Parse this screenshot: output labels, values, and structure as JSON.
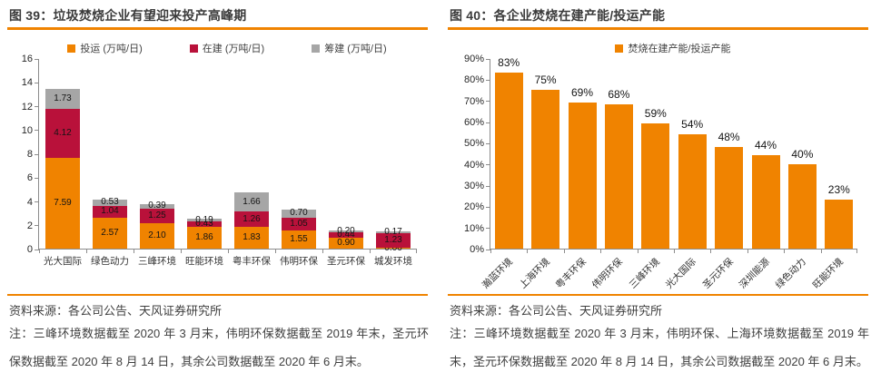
{
  "colors": {
    "accent_orange": "#F08300",
    "crimson": "#B9113A",
    "gray": "#A6A6A6",
    "axis": "#8C8C8C",
    "text": "#3F3F3F"
  },
  "panels": [
    {
      "title": "图 39：垃圾焚烧企业有望迎来投产高峰期",
      "source": "资料来源：各公司公告、天风证券研究所",
      "note": "注：三峰环境数据截至 2020 年 3 月末，伟明环保数据截至 2019 年末，圣元环保数据截至 2020 年 8 月 14 日，其余公司数据截至 2020 年 6 月末。"
    },
    {
      "title": "图 40：各企业焚烧在建产能/投运产能",
      "source": "资料来源：各公司公告、天风证券研究所",
      "note": "注：三峰环境数据截至 2020 年 3 月末，伟明环保、上海环境数据截至 2019 年末，圣元环保数据截至 2020 年 8 月 14 日，其余公司数据截至 2020 年 6 月末。"
    }
  ],
  "chart_data": [
    {
      "type": "bar",
      "stacked": true,
      "title": "垃圾焚烧企业有望迎来投产高峰期",
      "categories": [
        "光大国际",
        "绿色动力",
        "三峰环境",
        "旺能环境",
        "粤丰环保",
        "伟明环保",
        "圣元环保",
        "城发环境"
      ],
      "series": [
        {
          "name": "投运 (万吨/日)",
          "color": "#F08300",
          "values": [
            7.59,
            2.57,
            2.1,
            1.86,
            1.83,
            1.55,
            0.9,
            0.06
          ]
        },
        {
          "name": "在建 (万吨/日)",
          "color": "#B9113A",
          "values": [
            4.12,
            1.04,
            1.25,
            0.43,
            1.26,
            1.05,
            0.44,
            1.23
          ]
        },
        {
          "name": "筹建 (万吨/日)",
          "color": "#A6A6A6",
          "values": [
            1.73,
            0.53,
            0.39,
            0.19,
            1.66,
            0.7,
            0.2,
            0.17
          ]
        }
      ],
      "xlabel": "",
      "ylabel": "",
      "ylim": [
        0,
        16
      ],
      "ytick_step": 2,
      "grid": false,
      "legend_position": "top",
      "data_labels": true,
      "data_label_format": "fixed2"
    },
    {
      "type": "bar",
      "stacked": false,
      "title": "各企业焚烧在建产能/投运产能",
      "categories": [
        "瀚蓝环境",
        "上海环境",
        "粤丰环保",
        "伟明环保",
        "三峰环境",
        "光大国际",
        "圣元环保",
        "深圳能源",
        "绿色动力",
        "旺能环境"
      ],
      "series": [
        {
          "name": "焚烧在建产能/投运产能",
          "color": "#F08300",
          "values": [
            83,
            75,
            69,
            68,
            59,
            54,
            48,
            44,
            40,
            23
          ]
        }
      ],
      "unit": "%",
      "xlabel": "",
      "ylabel": "",
      "ylim": [
        0,
        90
      ],
      "ytick_step": 10,
      "grid": false,
      "legend_position": "top",
      "data_labels": true,
      "data_label_format": "percent",
      "xlabel_rotation": -45
    }
  ]
}
